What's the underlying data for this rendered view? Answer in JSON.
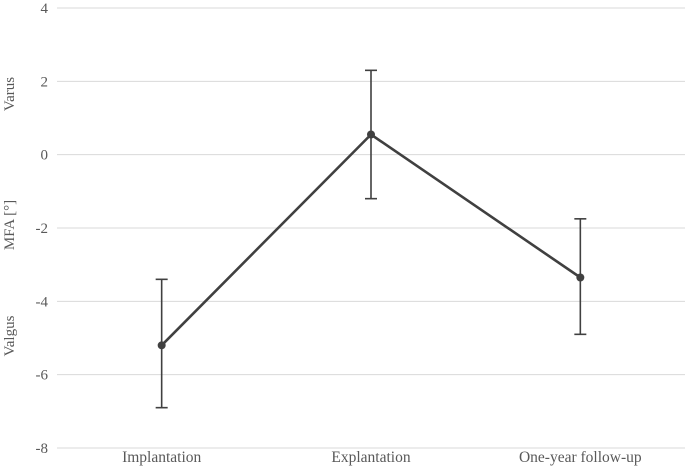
{
  "chart_data": {
    "type": "line",
    "title": "",
    "categories": [
      "Implantation",
      "Explantation",
      "One-year follow-up"
    ],
    "series": [
      {
        "name": "MFA",
        "values": [
          -5.2,
          0.55,
          -3.35
        ],
        "error_upper": [
          -3.4,
          2.3,
          -1.75
        ],
        "error_lower": [
          -6.9,
          -1.2,
          -4.9
        ]
      }
    ],
    "ylabel": "MFA [°]",
    "ylabel_top": "Varus",
    "ylabel_bottom": "Valgus",
    "yticks": [
      4,
      2,
      0,
      -2,
      -4,
      -6,
      -8
    ],
    "ytick_labels": [
      "4",
      "2",
      "0",
      "-2",
      "-4",
      "-6",
      "-8"
    ],
    "ylim": [
      -8,
      4
    ],
    "grid": true,
    "legend": "none"
  },
  "colors": {
    "line": "#404040",
    "marker": "#404040",
    "error_bar": "#404040",
    "gridline": "#d9d9d9",
    "text": "#595959",
    "background": "#ffffff"
  }
}
